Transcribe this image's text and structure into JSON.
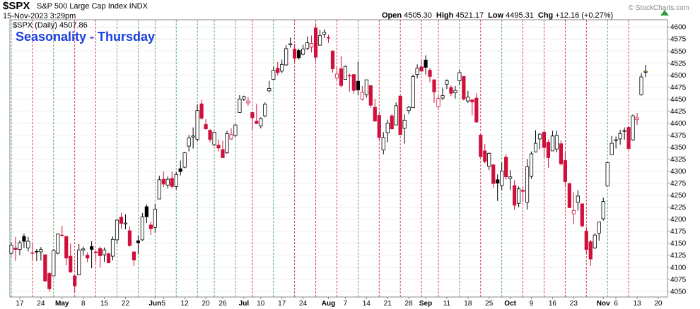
{
  "chart_data": {
    "type": "candlestick",
    "symbol": "$SPX",
    "description": "S&P 500 Large Cap Index INDX",
    "timestamp": "15-Nov-2023 3:29pm",
    "quote": [
      {
        "label": "Open",
        "value": "4505.30"
      },
      {
        "label": "High",
        "value": "4521.17"
      },
      {
        "label": "Low",
        "value": "4495.31"
      },
      {
        "label": "Chg",
        "value": "+12.16 (+0.27%)"
      }
    ],
    "legend": "$SPX (Daily) 4507.86",
    "copyright": "© StockCharts.com",
    "title": "Seasonality - Thursday",
    "ylim": [
      4038,
      4615
    ],
    "yticks": [
      4050,
      4075,
      4100,
      4125,
      4150,
      4175,
      4200,
      4225,
      4250,
      4275,
      4300,
      4325,
      4350,
      4375,
      4400,
      4425,
      4450,
      4475,
      4500,
      4525,
      4550,
      4575,
      4600
    ],
    "up_color": "#000000",
    "down_color": "#d0103a",
    "highlight_color": "#f2e600",
    "categories": [
      null,
      null,
      "17",
      null,
      null,
      null,
      null,
      "24",
      null,
      null,
      null,
      null,
      "May",
      null,
      null,
      null,
      null,
      "8",
      null,
      null,
      null,
      null,
      "15",
      null,
      null,
      null,
      null,
      "22",
      null,
      null,
      null,
      null,
      null,
      null,
      "Jun",
      null,
      "5",
      null,
      null,
      null,
      null,
      "12",
      null,
      null,
      null,
      null,
      "20",
      null,
      null,
      null,
      "26",
      null,
      null,
      null,
      null,
      "Jul",
      null,
      null,
      null,
      "10",
      null,
      null,
      null,
      null,
      "17",
      null,
      null,
      null,
      null,
      "24",
      null,
      null,
      null,
      null,
      null,
      "Aug",
      null,
      null,
      null,
      "7",
      null,
      null,
      null,
      null,
      "14",
      null,
      null,
      null,
      null,
      "21",
      null,
      null,
      null,
      null,
      "28",
      null,
      null,
      null,
      "Sep",
      null,
      null,
      null,
      null,
      "11",
      null,
      null,
      null,
      null,
      "18",
      null,
      null,
      null,
      null,
      "25",
      null,
      null,
      null,
      null,
      "Oct",
      null,
      null,
      null,
      null,
      "9",
      null,
      null,
      null,
      null,
      "16",
      null,
      null,
      null,
      null,
      "23",
      null,
      null,
      null,
      null,
      null,
      null,
      "Nov",
      null,
      null,
      "6",
      null,
      null,
      null,
      null,
      "13",
      null,
      null,
      null,
      null,
      "20"
    ],
    "candles": [
      {
        "o": 4129,
        "h": 4152,
        "l": 4125,
        "c": 4146
      },
      {
        "o": 4140,
        "h": 4163,
        "l": 4113,
        "c": 4137
      },
      {
        "o": 4137,
        "h": 4156,
        "l": 4125,
        "c": 4151
      },
      {
        "o": 4164,
        "h": 4170,
        "l": 4140,
        "c": 4154
      },
      {
        "o": 4140,
        "h": 4163,
        "l": 4133,
        "c": 4154
      },
      {
        "o": 4130,
        "h": 4149,
        "l": 4115,
        "c": 4129
      },
      {
        "o": 4132,
        "h": 4138,
        "l": 4113,
        "c": 4133
      },
      {
        "o": 4132,
        "h": 4142,
        "l": 4114,
        "c": 4137
      },
      {
        "o": 4126,
        "h": 4127,
        "l": 4071,
        "c": 4071
      },
      {
        "o": 4087,
        "h": 4090,
        "l": 4049,
        "c": 4055
      },
      {
        "o": 4082,
        "h": 4138,
        "l": 4082,
        "c": 4135
      },
      {
        "o": 4129,
        "h": 4170,
        "l": 4127,
        "c": 4169
      },
      {
        "o": 4166,
        "h": 4186,
        "l": 4164,
        "c": 4167
      },
      {
        "o": 4164,
        "h": 4165,
        "l": 4104,
        "c": 4119
      },
      {
        "o": 4123,
        "h": 4149,
        "l": 4088,
        "c": 4090
      },
      {
        "o": 4082,
        "h": 4083,
        "l": 4048,
        "c": 4061
      },
      {
        "o": 4084,
        "h": 4148,
        "l": 4084,
        "c": 4136
      },
      {
        "o": 4136,
        "h": 4143,
        "l": 4124,
        "c": 4138
      },
      {
        "o": 4125,
        "h": 4131,
        "l": 4110,
        "c": 4119
      },
      {
        "o": 4143,
        "h": 4154,
        "l": 4098,
        "c": 4137
      },
      {
        "o": 4132,
        "h": 4133,
        "l": 4110,
        "c": 4130
      },
      {
        "o": 4139,
        "h": 4143,
        "l": 4099,
        "c": 4124
      },
      {
        "o": 4126,
        "h": 4141,
        "l": 4111,
        "c": 4136
      },
      {
        "o": 4128,
        "h": 4130,
        "l": 4109,
        "c": 4109
      },
      {
        "o": 4123,
        "h": 4164,
        "l": 4114,
        "c": 4158
      },
      {
        "o": 4157,
        "h": 4199,
        "l": 4148,
        "c": 4198
      },
      {
        "o": 4204,
        "h": 4213,
        "l": 4180,
        "c": 4191
      },
      {
        "o": 4190,
        "h": 4210,
        "l": 4179,
        "c": 4192
      },
      {
        "o": 4176,
        "h": 4185,
        "l": 4143,
        "c": 4145
      },
      {
        "o": 4132,
        "h": 4132,
        "l": 4103,
        "c": 4115
      },
      {
        "o": 4155,
        "h": 4166,
        "l": 4127,
        "c": 4151
      },
      {
        "o": 4157,
        "h": 4213,
        "l": 4155,
        "c": 4205
      },
      {
        "o": 4226,
        "h": 4231,
        "l": 4192,
        "c": 4205
      },
      {
        "o": 4188,
        "h": 4195,
        "l": 4167,
        "c": 4180
      },
      {
        "o": 4183,
        "h": 4232,
        "l": 4172,
        "c": 4221
      },
      {
        "o": 4242,
        "h": 4290,
        "l": 4242,
        "c": 4282
      },
      {
        "o": 4283,
        "h": 4299,
        "l": 4267,
        "c": 4273
      },
      {
        "o": 4271,
        "h": 4289,
        "l": 4264,
        "c": 4283
      },
      {
        "o": 4285,
        "h": 4299,
        "l": 4264,
        "c": 4268
      },
      {
        "o": 4268,
        "h": 4298,
        "l": 4262,
        "c": 4293
      },
      {
        "o": 4305,
        "h": 4322,
        "l": 4291,
        "c": 4299
      },
      {
        "o": 4308,
        "h": 4340,
        "l": 4306,
        "c": 4338
      },
      {
        "o": 4352,
        "h": 4375,
        "l": 4341,
        "c": 4369
      },
      {
        "o": 4371,
        "h": 4391,
        "l": 4347,
        "c": 4373
      },
      {
        "o": 4366,
        "h": 4439,
        "l": 4362,
        "c": 4426
      },
      {
        "o": 4440,
        "h": 4448,
        "l": 4407,
        "c": 4410
      },
      {
        "o": 4397,
        "h": 4408,
        "l": 4386,
        "c": 4388
      },
      {
        "o": 4385,
        "h": 4387,
        "l": 4360,
        "c": 4366
      },
      {
        "o": 4355,
        "h": 4382,
        "l": 4352,
        "c": 4381
      },
      {
        "o": 4354,
        "h": 4366,
        "l": 4341,
        "c": 4348
      },
      {
        "o": 4345,
        "h": 4363,
        "l": 4328,
        "c": 4328
      },
      {
        "o": 4338,
        "h": 4384,
        "l": 4336,
        "c": 4378
      },
      {
        "o": 4367,
        "h": 4389,
        "l": 4365,
        "c": 4376
      },
      {
        "o": 4374,
        "h": 4398,
        "l": 4371,
        "c": 4396
      },
      {
        "o": 4422,
        "h": 4458,
        "l": 4422,
        "c": 4450
      },
      {
        "o": 4450,
        "h": 4457,
        "l": 4446,
        "c": 4455
      },
      {
        "o": 4442,
        "h": 4454,
        "l": 4436,
        "c": 4446
      },
      {
        "o": 4422,
        "h": 4423,
        "l": 4385,
        "c": 4411
      },
      {
        "o": 4404,
        "h": 4440,
        "l": 4398,
        "c": 4399
      },
      {
        "o": 4394,
        "h": 4412,
        "l": 4389,
        "c": 4409
      },
      {
        "o": 4415,
        "h": 4443,
        "l": 4412,
        "c": 4439
      },
      {
        "o": 4467,
        "h": 4488,
        "l": 4464,
        "c": 4472
      },
      {
        "o": 4491,
        "h": 4517,
        "l": 4490,
        "c": 4510
      },
      {
        "o": 4514,
        "h": 4527,
        "l": 4499,
        "c": 4505
      },
      {
        "o": 4508,
        "h": 4532,
        "l": 4504,
        "c": 4522
      },
      {
        "o": 4521,
        "h": 4562,
        "l": 4519,
        "c": 4555
      },
      {
        "o": 4563,
        "h": 4578,
        "l": 4557,
        "c": 4565
      },
      {
        "o": 4554,
        "h": 4565,
        "l": 4527,
        "c": 4535
      },
      {
        "o": 4551,
        "h": 4555,
        "l": 4532,
        "c": 4536
      },
      {
        "o": 4543,
        "h": 4563,
        "l": 4541,
        "c": 4554
      },
      {
        "o": 4555,
        "h": 4580,
        "l": 4552,
        "c": 4567
      },
      {
        "o": 4558,
        "h": 4582,
        "l": 4547,
        "c": 4566
      },
      {
        "o": 4598,
        "h": 4607,
        "l": 4528,
        "c": 4537
      },
      {
        "o": 4562,
        "h": 4594,
        "l": 4561,
        "c": 4582
      },
      {
        "o": 4585,
        "h": 4595,
        "l": 4577,
        "c": 4589
      },
      {
        "o": 4578,
        "h": 4584,
        "l": 4567,
        "c": 4577
      },
      {
        "o": 4550,
        "h": 4551,
        "l": 4505,
        "c": 4513
      },
      {
        "o": 4494,
        "h": 4519,
        "l": 4490,
        "c": 4502
      },
      {
        "o": 4513,
        "h": 4540,
        "l": 4474,
        "c": 4478
      },
      {
        "o": 4491,
        "h": 4520,
        "l": 4491,
        "c": 4518
      },
      {
        "o": 4498,
        "h": 4503,
        "l": 4465,
        "c": 4499
      },
      {
        "o": 4501,
        "h": 4502,
        "l": 4461,
        "c": 4468
      },
      {
        "o": 4487,
        "h": 4528,
        "l": 4458,
        "c": 4469
      },
      {
        "o": 4450,
        "h": 4477,
        "l": 4447,
        "c": 4464
      },
      {
        "o": 4459,
        "h": 4490,
        "l": 4453,
        "c": 4490
      },
      {
        "o": 4478,
        "h": 4479,
        "l": 4432,
        "c": 4437
      },
      {
        "o": 4433,
        "h": 4450,
        "l": 4403,
        "c": 4404
      },
      {
        "o": 4416,
        "h": 4421,
        "l": 4365,
        "c": 4370
      },
      {
        "o": 4344,
        "h": 4381,
        "l": 4335,
        "c": 4370
      },
      {
        "o": 4380,
        "h": 4407,
        "l": 4360,
        "c": 4400
      },
      {
        "o": 4415,
        "h": 4419,
        "l": 4386,
        "c": 4388
      },
      {
        "o": 4396,
        "h": 4443,
        "l": 4396,
        "c": 4436
      },
      {
        "o": 4456,
        "h": 4459,
        "l": 4375,
        "c": 4376
      },
      {
        "o": 4389,
        "h": 4418,
        "l": 4357,
        "c": 4406
      },
      {
        "o": 4426,
        "h": 4436,
        "l": 4419,
        "c": 4433
      },
      {
        "o": 4432,
        "h": 4501,
        "l": 4431,
        "c": 4497
      },
      {
        "o": 4501,
        "h": 4522,
        "l": 4493,
        "c": 4514
      },
      {
        "o": 4517,
        "h": 4532,
        "l": 4507,
        "c": 4508
      },
      {
        "o": 4531,
        "h": 4541,
        "l": 4501,
        "c": 4516
      },
      {
        "o": 4510,
        "h": 4514,
        "l": 4485,
        "c": 4497
      },
      {
        "o": 4490,
        "h": 4491,
        "l": 4442,
        "c": 4465
      },
      {
        "o": 4434,
        "h": 4457,
        "l": 4431,
        "c": 4451
      },
      {
        "o": 4452,
        "h": 4474,
        "l": 4448,
        "c": 4457
      },
      {
        "o": 4481,
        "h": 4491,
        "l": 4471,
        "c": 4488
      },
      {
        "o": 4474,
        "h": 4478,
        "l": 4456,
        "c": 4462
      },
      {
        "o": 4463,
        "h": 4477,
        "l": 4451,
        "c": 4468
      },
      {
        "o": 4488,
        "h": 4511,
        "l": 4478,
        "c": 4505
      },
      {
        "o": 4497,
        "h": 4497,
        "l": 4447,
        "c": 4450
      },
      {
        "o": 4446,
        "h": 4467,
        "l": 4442,
        "c": 4454
      },
      {
        "o": 4448,
        "h": 4450,
        "l": 4416,
        "c": 4444
      },
      {
        "o": 4452,
        "h": 4462,
        "l": 4402,
        "c": 4402
      },
      {
        "o": 4375,
        "h": 4377,
        "l": 4329,
        "c": 4330
      },
      {
        "o": 4342,
        "h": 4357,
        "l": 4316,
        "c": 4320
      },
      {
        "o": 4310,
        "h": 4339,
        "l": 4302,
        "c": 4337
      },
      {
        "o": 4313,
        "h": 4315,
        "l": 4265,
        "c": 4274
      },
      {
        "o": 4282,
        "h": 4293,
        "l": 4238,
        "c": 4275
      },
      {
        "o": 4270,
        "h": 4318,
        "l": 4261,
        "c": 4300
      },
      {
        "o": 4329,
        "h": 4335,
        "l": 4282,
        "c": 4288
      },
      {
        "o": 4285,
        "h": 4302,
        "l": 4260,
        "c": 4288
      },
      {
        "o": 4270,
        "h": 4281,
        "l": 4220,
        "c": 4229
      },
      {
        "o": 4233,
        "h": 4268,
        "l": 4225,
        "c": 4263
      },
      {
        "o": 4260,
        "h": 4267,
        "l": 4236,
        "c": 4258
      },
      {
        "o": 4235,
        "h": 4325,
        "l": 4220,
        "c": 4309
      },
      {
        "o": 4289,
        "h": 4341,
        "l": 4284,
        "c": 4336
      },
      {
        "o": 4340,
        "h": 4385,
        "l": 4339,
        "c": 4358
      },
      {
        "o": 4367,
        "h": 4379,
        "l": 4346,
        "c": 4377
      },
      {
        "o": 4381,
        "h": 4386,
        "l": 4329,
        "c": 4349
      },
      {
        "o": 4360,
        "h": 4366,
        "l": 4307,
        "c": 4328
      },
      {
        "o": 4342,
        "h": 4384,
        "l": 4342,
        "c": 4373
      },
      {
        "o": 4346,
        "h": 4384,
        "l": 4339,
        "c": 4374
      },
      {
        "o": 4357,
        "h": 4364,
        "l": 4312,
        "c": 4315
      },
      {
        "o": 4322,
        "h": 4339,
        "l": 4269,
        "c": 4278
      },
      {
        "o": 4274,
        "h": 4276,
        "l": 4223,
        "c": 4224
      },
      {
        "o": 4211,
        "h": 4256,
        "l": 4189,
        "c": 4218
      },
      {
        "o": 4235,
        "h": 4260,
        "l": 4218,
        "c": 4248
      },
      {
        "o": 4232,
        "h": 4232,
        "l": 4183,
        "c": 4186
      },
      {
        "o": 4175,
        "h": 4183,
        "l": 4127,
        "c": 4137
      },
      {
        "o": 4153,
        "h": 4157,
        "l": 4103,
        "c": 4117
      },
      {
        "o": 4140,
        "h": 4171,
        "l": 4138,
        "c": 4167
      },
      {
        "o": 4171,
        "h": 4194,
        "l": 4155,
        "c": 4194
      },
      {
        "o": 4201,
        "h": 4245,
        "l": 4197,
        "c": 4237
      },
      {
        "o": 4269,
        "h": 4319,
        "l": 4268,
        "c": 4318
      },
      {
        "o": 4334,
        "h": 4373,
        "l": 4334,
        "c": 4358
      },
      {
        "o": 4364,
        "h": 4372,
        "l": 4347,
        "c": 4365
      },
      {
        "o": 4367,
        "h": 4386,
        "l": 4355,
        "c": 4378
      },
      {
        "o": 4384,
        "h": 4391,
        "l": 4365,
        "c": 4383
      },
      {
        "o": 4391,
        "h": 4393,
        "l": 4344,
        "c": 4347
      },
      {
        "o": 4365,
        "h": 4418,
        "l": 4363,
        "c": 4415
      },
      {
        "o": 4407,
        "h": 4421,
        "l": 4396,
        "c": 4411
      },
      {
        "o": 4459,
        "h": 4504,
        "l": 4457,
        "c": 4496
      },
      {
        "o": 4505.3,
        "h": 4521.17,
        "l": 4495.31,
        "c": 4507.86
      },
      null,
      null,
      null
    ]
  }
}
